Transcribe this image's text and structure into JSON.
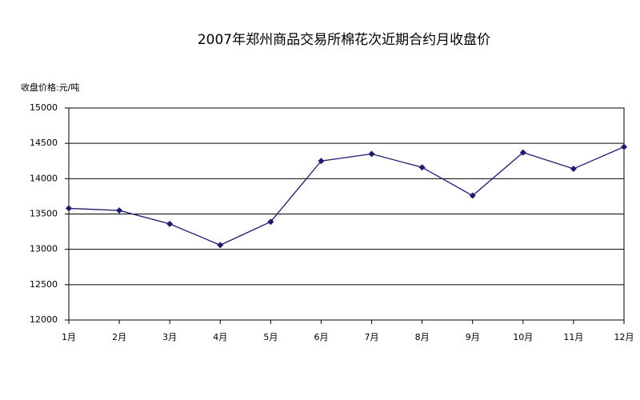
{
  "chart_data": {
    "type": "line",
    "title": "2007年郑州商品交易所棉花次近期合约月收盘价",
    "y_label": "收盘价格:元/吨",
    "categories": [
      "1月",
      "2月",
      "3月",
      "4月",
      "5月",
      "6月",
      "7月",
      "8月",
      "9月",
      "10月",
      "11月",
      "12月"
    ],
    "series": [
      {
        "name": "收盘价",
        "color": "#1c1c6e",
        "values": [
          13580,
          13550,
          13360,
          13060,
          13390,
          14250,
          14350,
          14160,
          13760,
          14370,
          14140,
          14450
        ]
      }
    ],
    "ylim": [
      12000,
      15000
    ],
    "yticks": [
      12000,
      12500,
      13000,
      13500,
      14000,
      14500,
      15000
    ],
    "grid": true
  }
}
